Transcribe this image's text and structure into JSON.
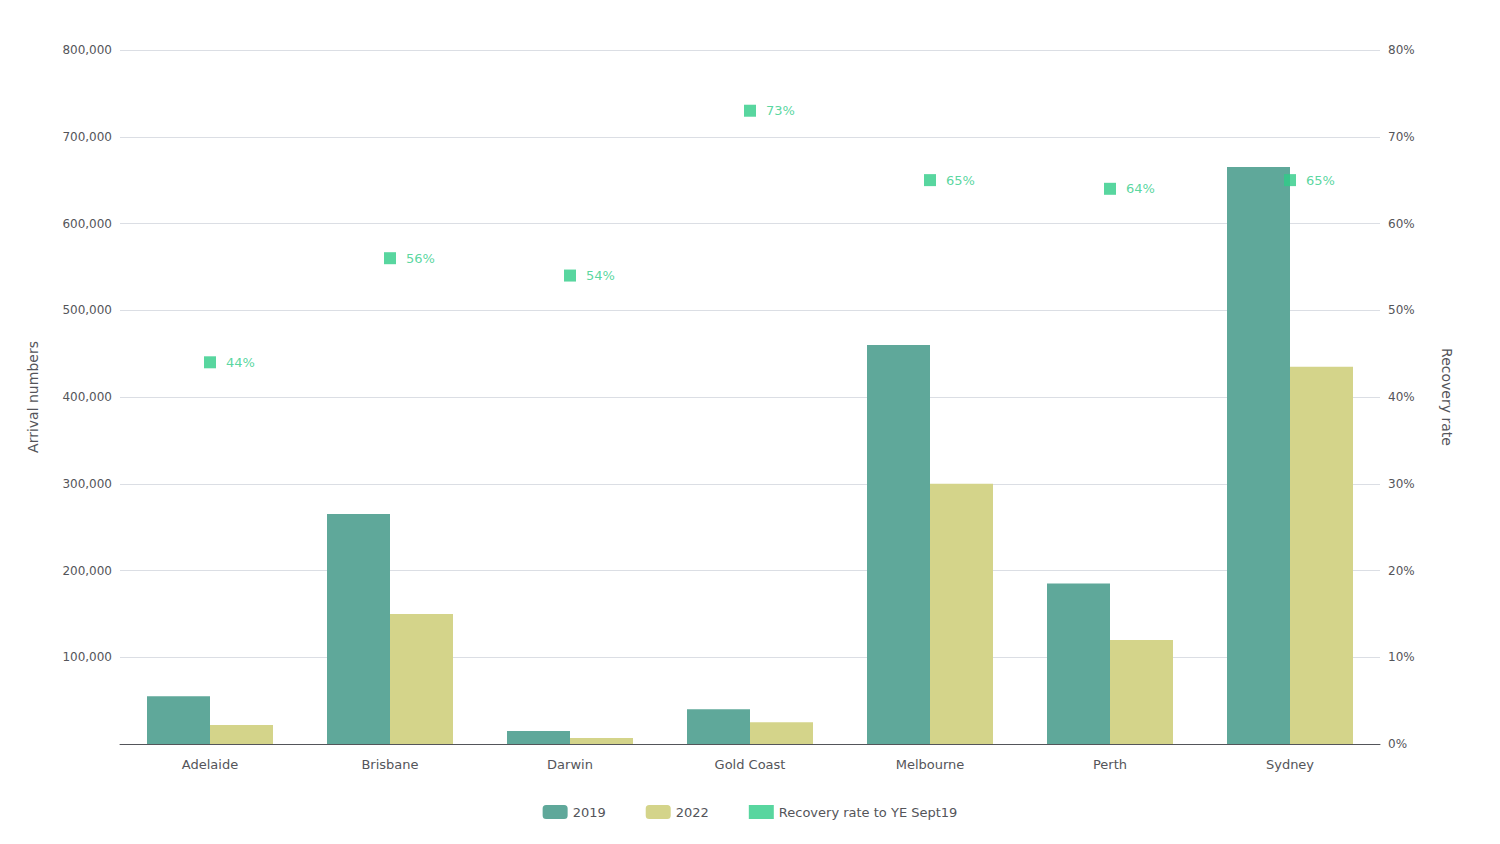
{
  "chart_data": {
    "type": "bar",
    "categories": [
      "Adelaide",
      "Brisbane",
      "Darwin",
      "Gold Coast",
      "Melbourne",
      "Perth",
      "Sydney"
    ],
    "series": [
      {
        "name": "2019",
        "color": "#5fa89a",
        "values": [
          55000,
          265000,
          15000,
          40000,
          460000,
          185000,
          665000
        ]
      },
      {
        "name": "2022",
        "color": "#d4d48a",
        "values": [
          22000,
          150000,
          7000,
          25000,
          300000,
          120000,
          435000
        ]
      },
      {
        "name": "Recovery rate to YE Sept19",
        "type": "scatter",
        "marker": "square",
        "color": "#2ecc87",
        "axis": "y2",
        "values": [
          0.44,
          0.56,
          0.54,
          0.73,
          0.65,
          0.64,
          0.65
        ],
        "value_labels": [
          "44%",
          "56%",
          "54%",
          "73%",
          "65%",
          "64%",
          "65%"
        ],
        "data_labels": true
      }
    ],
    "ylabel": "Arrival numbers",
    "y2label": "Recovery rate",
    "ylim": [
      0,
      800000
    ],
    "yticks": [
      {
        "value": 100000,
        "label": "100,000"
      },
      {
        "value": 200000,
        "label": "200,000"
      },
      {
        "value": 300000,
        "label": "300,000"
      },
      {
        "value": 400000,
        "label": "400,000"
      },
      {
        "value": 500000,
        "label": "500,000"
      },
      {
        "value": 600000,
        "label": "600,000"
      },
      {
        "value": 700000,
        "label": "700,000"
      },
      {
        "value": 800000,
        "label": "800,000"
      }
    ],
    "y2lim": [
      0,
      0.8
    ],
    "y2ticks": [
      {
        "value": 0.0,
        "label": "0%"
      },
      {
        "value": 0.1,
        "label": "10%"
      },
      {
        "value": 0.2,
        "label": "20%"
      },
      {
        "value": 0.3,
        "label": "30%"
      },
      {
        "value": 0.4,
        "label": "40%"
      },
      {
        "value": 0.5,
        "label": "50%"
      },
      {
        "value": 0.6,
        "label": "60%"
      },
      {
        "value": 0.7,
        "label": "70%"
      },
      {
        "value": 0.8,
        "label": "80%"
      }
    ],
    "grid": true,
    "legend": "bottom"
  }
}
